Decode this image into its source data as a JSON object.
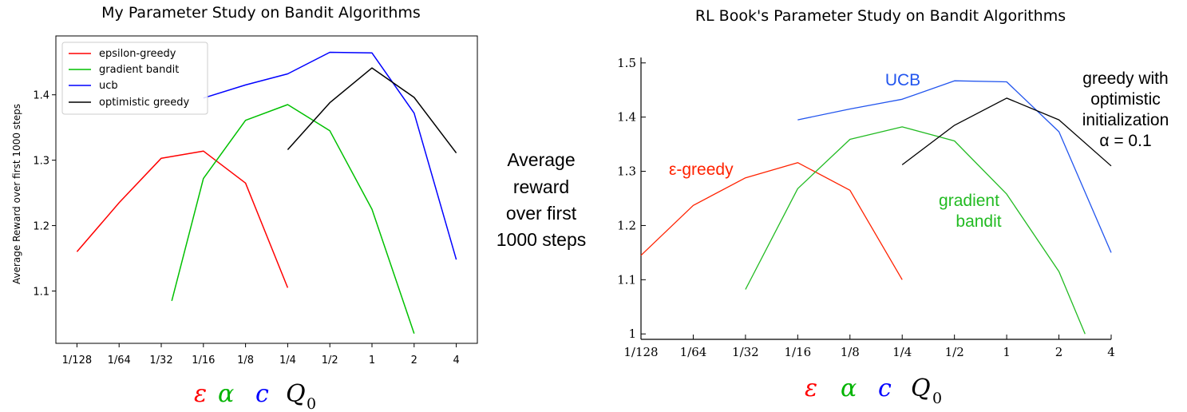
{
  "middle_label": [
    "Average",
    "reward",
    "over first",
    "1000 steps"
  ],
  "symbols": [
    {
      "text": "ε",
      "color": "#ff0000"
    },
    {
      "text": "α",
      "color": "#00b400"
    },
    {
      "text": "c",
      "color": "#0000ff"
    },
    {
      "text": "Q",
      "sub": "0",
      "color": "#000000"
    }
  ],
  "chart_data": [
    {
      "type": "line",
      "title": "My Parameter Study on Bandit Algorithms",
      "xlabel": "",
      "ylabel": "Average Reward over first 1000 steps",
      "x_tick_labels": [
        "1/128",
        "1/64",
        "1/32",
        "1/16",
        "1/8",
        "1/4",
        "1/2",
        "1",
        "2",
        "4"
      ],
      "y_ticks": [
        1.1,
        1.2,
        1.3,
        1.4
      ],
      "y_tick_labels": [
        "1.1",
        "1.2",
        "1.3",
        "1.4"
      ],
      "xlim": [
        -0.5,
        9.5
      ],
      "ylim": [
        1.02,
        1.49
      ],
      "x_scale": "log2 (indexed)",
      "grid": false,
      "legend": "top-left",
      "series": [
        {
          "name": "epsilon-greedy",
          "color": "#ff0000",
          "points": [
            [
              0,
              1.16
            ],
            [
              1,
              1.235
            ],
            [
              2,
              1.303
            ],
            [
              3,
              1.314
            ],
            [
              4,
              1.265
            ],
            [
              5,
              1.105
            ]
          ]
        },
        {
          "name": "gradient bandit",
          "color": "#00c000",
          "points": [
            [
              2.25,
              1.085
            ],
            [
              3,
              1.272
            ],
            [
              4,
              1.361
            ],
            [
              5,
              1.385
            ],
            [
              6,
              1.345
            ],
            [
              7,
              1.225
            ],
            [
              8,
              1.035
            ]
          ]
        },
        {
          "name": "ucb",
          "color": "#0000ff",
          "points": [
            [
              3,
              1.395
            ],
            [
              4,
              1.415
            ],
            [
              5,
              1.432
            ],
            [
              6,
              1.465
            ],
            [
              7,
              1.464
            ],
            [
              8,
              1.372
            ],
            [
              9,
              1.148
            ]
          ]
        },
        {
          "name": "optimistic greedy",
          "color": "#000000",
          "points": [
            [
              5,
              1.316
            ],
            [
              6,
              1.388
            ],
            [
              7,
              1.441
            ],
            [
              8,
              1.396
            ],
            [
              9,
              1.311
            ]
          ]
        }
      ]
    },
    {
      "type": "line",
      "title": "RL Book's Parameter Study on Bandit Algorithms",
      "xlabel": "",
      "ylabel": "",
      "x_tick_labels": [
        "1/128",
        "1/64",
        "1/32",
        "1/16",
        "1/8",
        "1/4",
        "1/2",
        "1",
        "2",
        "4"
      ],
      "y_ticks": [
        1.0,
        1.1,
        1.2,
        1.3,
        1.4,
        1.5
      ],
      "y_tick_labels": [
        "1",
        "1.1",
        "1.2",
        "1.3",
        "1.4",
        "1.5"
      ],
      "xlim": [
        0,
        9
      ],
      "ylim": [
        0.99,
        1.51
      ],
      "x_scale": "log2 (indexed)",
      "grid": false,
      "legend": "none",
      "annotations": [
        {
          "lines": [
            "UCB"
          ],
          "color": "#2255ee"
        },
        {
          "lines": [
            "greedy with",
            "optimistic",
            "initialization",
            "α = 0.1"
          ],
          "color": "#000000"
        },
        {
          "lines": [
            "ε-greedy"
          ],
          "color": "#ff2200"
        },
        {
          "lines": [
            "gradient",
            "bandit"
          ],
          "color": "#22bb22"
        }
      ],
      "series": [
        {
          "name": "",
          "color": "#ff2200",
          "points": [
            [
              0,
              1.145
            ],
            [
              1,
              1.237
            ],
            [
              2,
              1.288
            ],
            [
              3,
              1.316
            ],
            [
              4,
              1.265
            ],
            [
              5,
              1.1
            ]
          ]
        },
        {
          "name": "",
          "color": "#22bb22",
          "points": [
            [
              2,
              1.082
            ],
            [
              3,
              1.268
            ],
            [
              4,
              1.359
            ],
            [
              5,
              1.382
            ],
            [
              6,
              1.356
            ],
            [
              7,
              1.258
            ],
            [
              8,
              1.115
            ],
            [
              8.5,
              1.0
            ]
          ]
        },
        {
          "name": "",
          "color": "#2255ee",
          "points": [
            [
              3,
              1.395
            ],
            [
              4,
              1.415
            ],
            [
              5,
              1.433
            ],
            [
              6,
              1.467
            ],
            [
              7,
              1.465
            ],
            [
              8,
              1.373
            ],
            [
              9,
              1.15
            ]
          ]
        },
        {
          "name": "",
          "color": "#000000",
          "points": [
            [
              5,
              1.312
            ],
            [
              6,
              1.385
            ],
            [
              7,
              1.435
            ],
            [
              8,
              1.395
            ],
            [
              9,
              1.31
            ]
          ]
        }
      ]
    }
  ]
}
